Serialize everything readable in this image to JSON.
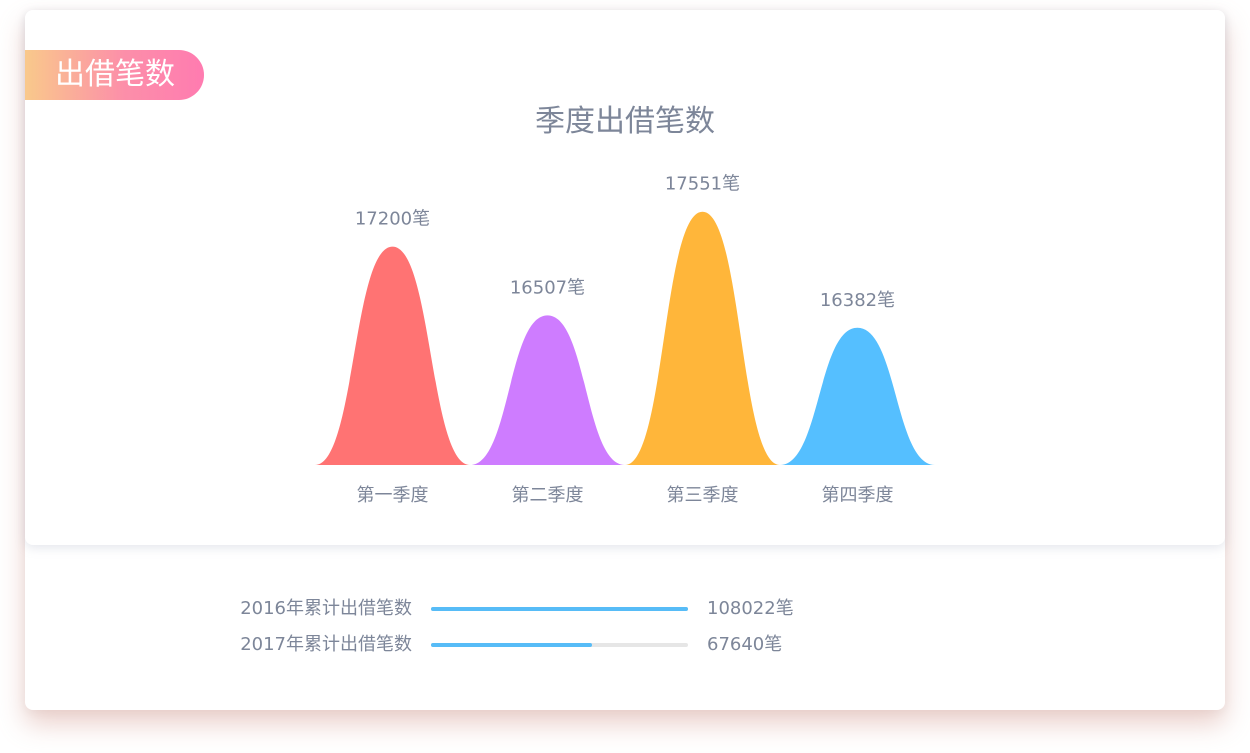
{
  "badge": {
    "label": "出借笔数"
  },
  "chart_data": {
    "type": "area",
    "title": "季度出借笔数",
    "xlabel": "",
    "ylabel": "",
    "categories": [
      "第一季度",
      "第二季度",
      "第三季度",
      "第四季度"
    ],
    "values": [
      17200,
      16507,
      17551,
      16382
    ],
    "value_labels": [
      "17200笔",
      "16507笔",
      "17551笔",
      "16382笔"
    ],
    "ylim": [
      15000,
      17800
    ],
    "colors": [
      "#ff7373",
      "#ce7cff",
      "#ffb63a",
      "#55bfff"
    ],
    "grid": false,
    "legend": "none"
  },
  "summary": [
    {
      "label": "2016年累计出借笔数",
      "value": 108022,
      "value_text": "108022笔",
      "progress": 1.0
    },
    {
      "label": "2017年累计出借笔数",
      "value": 67640,
      "value_text": "67640笔",
      "progress": 0.626
    }
  ],
  "colors": {
    "accent_blue": "#57bcf7",
    "text_gray": "#7d8699",
    "track_gray": "#e6e6e6"
  }
}
